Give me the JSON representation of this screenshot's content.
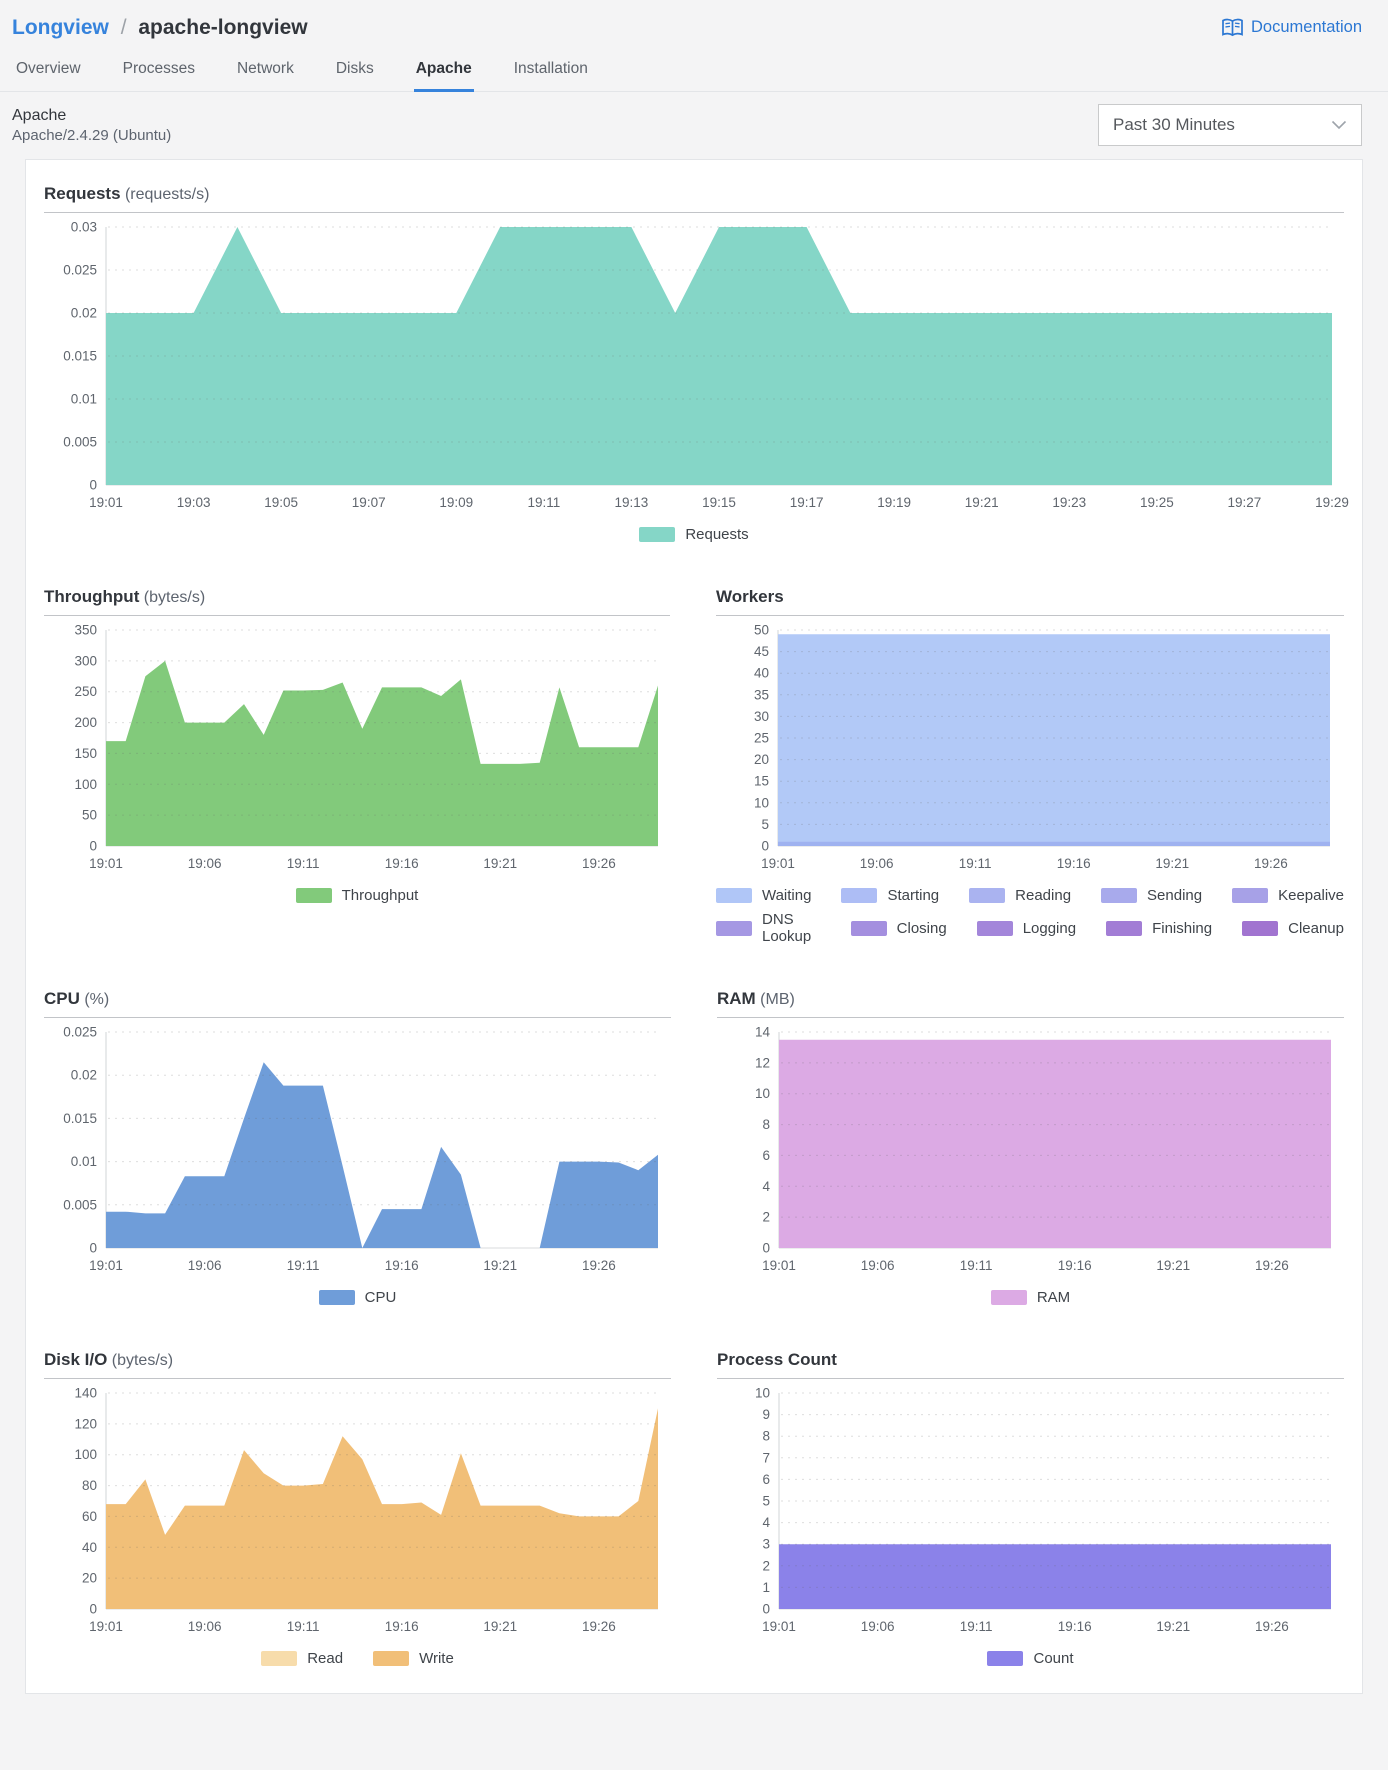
{
  "breadcrumb": {
    "parent": "Longview",
    "separator": "/",
    "current": "apache-longview"
  },
  "documentation": {
    "label": "Documentation"
  },
  "tabs": [
    {
      "label": "Overview",
      "active": false
    },
    {
      "label": "Processes",
      "active": false
    },
    {
      "label": "Network",
      "active": false
    },
    {
      "label": "Disks",
      "active": false
    },
    {
      "label": "Apache",
      "active": true
    },
    {
      "label": "Installation",
      "active": false
    }
  ],
  "subheader": {
    "title": "Apache",
    "subtitle": "Apache/2.4.29 (Ubuntu)"
  },
  "time_range": {
    "selected": "Past 30 Minutes"
  },
  "colors": {
    "accent_blue": "#3683dc",
    "doc_link_blue": "#2b77d3",
    "panel_border": "#e3e5e8",
    "page_background": "#f4f4f5"
  },
  "chart_data": [
    {
      "id": "requests",
      "type": "area",
      "layout": "full",
      "title": "Requests",
      "unit": "(requests/s)",
      "x_tick_labels": [
        "19:01",
        "19:03",
        "19:05",
        "19:07",
        "19:09",
        "19:11",
        "19:13",
        "19:15",
        "19:17",
        "19:19",
        "19:21",
        "19:23",
        "19:25",
        "19:27",
        "19:29"
      ],
      "x_tick_minutes": [
        0,
        2,
        4,
        6,
        8,
        10,
        12,
        14,
        16,
        18,
        20,
        22,
        24,
        26,
        28
      ],
      "x_max_minutes": 28,
      "ylim": [
        0,
        0.03
      ],
      "y_ticks": [
        0,
        0.005,
        0.01,
        0.015,
        0.02,
        0.025,
        0.03
      ],
      "y_tick_labels": [
        "0",
        "0.005",
        "0.01",
        "0.015",
        "0.02",
        "0.025",
        "0.03"
      ],
      "series": [
        {
          "name": "Requests",
          "color": "#85d6c7",
          "values": [
            0.02,
            0.02,
            0.02,
            0.03,
            0.02,
            0.02,
            0.02,
            0.02,
            0.02,
            0.03,
            0.03,
            0.03,
            0.03,
            0.02,
            0.03,
            0.03,
            0.03,
            0.02,
            0.02,
            0.02,
            0.02,
            0.02,
            0.02,
            0.02,
            0.02,
            0.02,
            0.02,
            0.02,
            0.02
          ]
        }
      ],
      "legend_rows": [
        [
          {
            "label": "Requests",
            "color": "#85d6c7"
          }
        ]
      ]
    },
    {
      "id": "throughput",
      "type": "area",
      "layout": "half",
      "title": "Throughput",
      "unit": "(bytes/s)",
      "x_tick_labels": [
        "19:01",
        "19:06",
        "19:11",
        "19:16",
        "19:21",
        "19:26"
      ],
      "x_tick_minutes": [
        0,
        5,
        10,
        15,
        20,
        25
      ],
      "x_max_minutes": 28,
      "ylim": [
        0,
        350
      ],
      "y_ticks": [
        0,
        50,
        100,
        150,
        200,
        250,
        300,
        350
      ],
      "y_tick_labels": [
        "0",
        "50",
        "100",
        "150",
        "200",
        "250",
        "300",
        "350"
      ],
      "series": [
        {
          "name": "Throughput",
          "color": "#82ca7b",
          "values": [
            170,
            170,
            275,
            300,
            200,
            200,
            200,
            230,
            180,
            252,
            252,
            253,
            265,
            190,
            257,
            257,
            257,
            243,
            270,
            133,
            133,
            133,
            135,
            257,
            160,
            160,
            160,
            160,
            260
          ]
        }
      ],
      "legend_rows": [
        [
          {
            "label": "Throughput",
            "color": "#82ca7b"
          }
        ]
      ]
    },
    {
      "id": "workers",
      "type": "area",
      "layout": "half",
      "title": "Workers",
      "unit": "",
      "x_tick_labels": [
        "19:01",
        "19:06",
        "19:11",
        "19:16",
        "19:21",
        "19:26"
      ],
      "x_tick_minutes": [
        0,
        5,
        10,
        15,
        20,
        25
      ],
      "x_max_minutes": 28,
      "ylim": [
        0,
        50
      ],
      "y_ticks": [
        0,
        5,
        10,
        15,
        20,
        25,
        30,
        35,
        40,
        45,
        50
      ],
      "y_tick_labels": [
        "0",
        "5",
        "10",
        "15",
        "20",
        "25",
        "30",
        "35",
        "40",
        "45",
        "50"
      ],
      "series": [
        {
          "name": "Waiting",
          "color": "#b2c9f7",
          "values": [
            49,
            49,
            49,
            49,
            49,
            49,
            49,
            49,
            49,
            49,
            49,
            49,
            49,
            49,
            49,
            49,
            49,
            49,
            49,
            49,
            49,
            49,
            49,
            49,
            49,
            49,
            49,
            49,
            49
          ]
        },
        {
          "name": "Sending",
          "color": "#9fb2f0",
          "values": [
            1,
            1,
            1,
            1,
            1,
            1,
            1,
            1,
            1,
            1,
            1,
            1,
            1,
            1,
            1,
            1,
            1,
            1,
            1,
            1,
            1,
            1,
            1,
            1,
            1,
            1,
            1,
            1,
            1
          ]
        }
      ],
      "legend_rows": [
        [
          {
            "label": "Waiting",
            "color": "#b0c6f7"
          },
          {
            "label": "Starting",
            "color": "#adbdf5"
          },
          {
            "label": "Reading",
            "color": "#aab3f0"
          },
          {
            "label": "Sending",
            "color": "#a8aaec"
          },
          {
            "label": "Keepalive",
            "color": "#a7a1e7"
          }
        ],
        [
          {
            "label": "DNS Lookup",
            "color": "#a598e3"
          },
          {
            "label": "Closing",
            "color": "#a48fdf"
          },
          {
            "label": "Logging",
            "color": "#a386da"
          },
          {
            "label": "Finishing",
            "color": "#a27dd5"
          },
          {
            "label": "Cleanup",
            "color": "#a174d0"
          }
        ]
      ]
    },
    {
      "id": "cpu",
      "type": "area",
      "layout": "half",
      "title": "CPU",
      "unit": "(%)",
      "x_tick_labels": [
        "19:01",
        "19:06",
        "19:11",
        "19:16",
        "19:21",
        "19:26"
      ],
      "x_tick_minutes": [
        0,
        5,
        10,
        15,
        20,
        25
      ],
      "x_max_minutes": 28,
      "ylim": [
        0,
        0.025
      ],
      "y_ticks": [
        0,
        0.005,
        0.01,
        0.015,
        0.02,
        0.025
      ],
      "y_tick_labels": [
        "0",
        "0.005",
        "0.01",
        "0.015",
        "0.02",
        "0.025"
      ],
      "series": [
        {
          "name": "CPU",
          "color": "#6f9dd9",
          "values": [
            0.0042,
            0.0042,
            0.004,
            0.004,
            0.0083,
            0.0083,
            0.0083,
            0.015,
            0.0215,
            0.0188,
            0.0188,
            0.0188,
            0.0095,
            0,
            0.0045,
            0.0045,
            0.0045,
            0.0117,
            0.0085,
            0,
            0,
            0,
            0,
            0.01,
            0.01,
            0.01,
            0.0099,
            0.009,
            0.0108
          ]
        }
      ],
      "legend_rows": [
        [
          {
            "label": "CPU",
            "color": "#6f9dd9"
          }
        ]
      ]
    },
    {
      "id": "ram",
      "type": "area",
      "layout": "half",
      "title": "RAM",
      "unit": "(MB)",
      "x_tick_labels": [
        "19:01",
        "19:06",
        "19:11",
        "19:16",
        "19:21",
        "19:26"
      ],
      "x_tick_minutes": [
        0,
        5,
        10,
        15,
        20,
        25
      ],
      "x_max_minutes": 28,
      "ylim": [
        0,
        14
      ],
      "y_ticks": [
        0,
        2,
        4,
        6,
        8,
        10,
        12,
        14
      ],
      "y_tick_labels": [
        "0",
        "2",
        "4",
        "6",
        "8",
        "10",
        "12",
        "14"
      ],
      "series": [
        {
          "name": "RAM",
          "color": "#dcaae4",
          "values": [
            13.5,
            13.5,
            13.5,
            13.5,
            13.5,
            13.5,
            13.5,
            13.5,
            13.5,
            13.5,
            13.5,
            13.5,
            13.5,
            13.5,
            13.5,
            13.5,
            13.5,
            13.5,
            13.5,
            13.5,
            13.5,
            13.5,
            13.5,
            13.5,
            13.5,
            13.5,
            13.5,
            13.5,
            13.5
          ]
        }
      ],
      "legend_rows": [
        [
          {
            "label": "RAM",
            "color": "#dcaae4"
          }
        ]
      ]
    },
    {
      "id": "disk",
      "type": "area",
      "layout": "half",
      "title": "Disk I/O",
      "unit": "(bytes/s)",
      "x_tick_labels": [
        "19:01",
        "19:06",
        "19:11",
        "19:16",
        "19:21",
        "19:26"
      ],
      "x_tick_minutes": [
        0,
        5,
        10,
        15,
        20,
        25
      ],
      "x_max_minutes": 28,
      "ylim": [
        0,
        140
      ],
      "y_ticks": [
        0,
        20,
        40,
        60,
        80,
        100,
        120,
        140
      ],
      "y_tick_labels": [
        "0",
        "20",
        "40",
        "60",
        "80",
        "100",
        "120",
        "140"
      ],
      "series": [
        {
          "name": "Read",
          "color": "#f7dcab",
          "values": [
            0,
            0,
            0,
            0,
            0,
            0,
            0,
            0,
            0,
            0,
            0,
            0,
            0,
            0,
            0,
            0,
            0,
            0,
            0,
            0,
            0,
            0,
            0,
            0,
            0,
            0,
            0,
            0,
            0
          ]
        },
        {
          "name": "Write",
          "color": "#f1bf78",
          "values": [
            68,
            68,
            84,
            48,
            67,
            67,
            67,
            103,
            88,
            80,
            80,
            81,
            112,
            97,
            68,
            68,
            69,
            61,
            101,
            67,
            67,
            67,
            67,
            62,
            60,
            60,
            60,
            70,
            130
          ]
        }
      ],
      "legend_rows": [
        [
          {
            "label": "Read",
            "color": "#f7dcab"
          },
          {
            "label": "Write",
            "color": "#f1bf78"
          }
        ]
      ]
    },
    {
      "id": "process",
      "type": "area",
      "layout": "half",
      "title": "Process Count",
      "unit": "",
      "x_tick_labels": [
        "19:01",
        "19:06",
        "19:11",
        "19:16",
        "19:21",
        "19:26"
      ],
      "x_tick_minutes": [
        0,
        5,
        10,
        15,
        20,
        25
      ],
      "x_max_minutes": 28,
      "ylim": [
        0,
        10
      ],
      "y_ticks": [
        0,
        1,
        2,
        3,
        4,
        5,
        6,
        7,
        8,
        9,
        10
      ],
      "y_tick_labels": [
        "0",
        "1",
        "2",
        "3",
        "4",
        "5",
        "6",
        "7",
        "8",
        "9",
        "10"
      ],
      "series": [
        {
          "name": "Count",
          "color": "#8b82e9",
          "values": [
            3,
            3,
            3,
            3,
            3,
            3,
            3,
            3,
            3,
            3,
            3,
            3,
            3,
            3,
            3,
            3,
            3,
            3,
            3,
            3,
            3,
            3,
            3,
            3,
            3,
            3,
            3,
            3,
            3
          ]
        }
      ],
      "legend_rows": [
        [
          {
            "label": "Count",
            "color": "#8b82e9"
          }
        ]
      ]
    }
  ]
}
